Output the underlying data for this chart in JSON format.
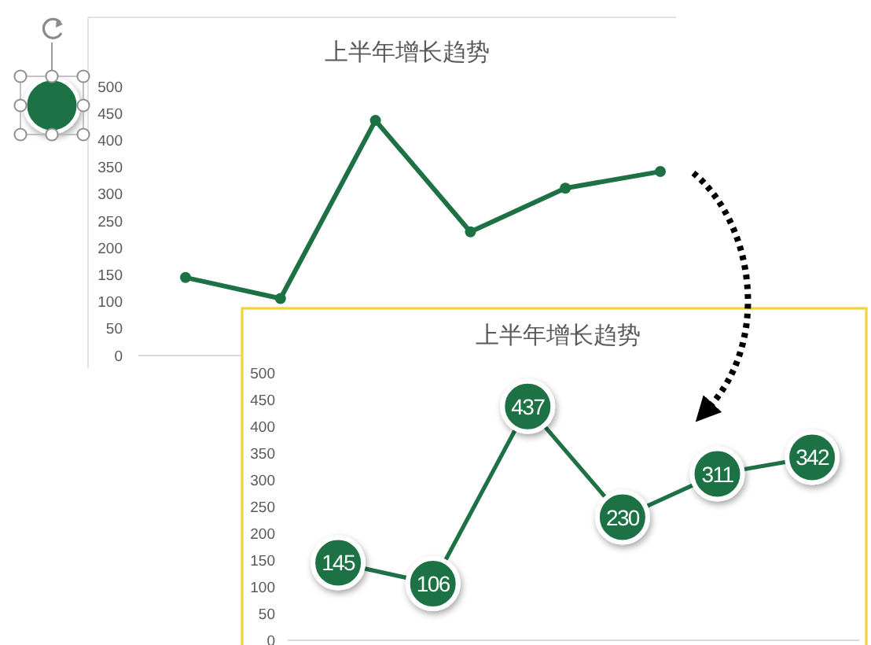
{
  "chart_data": [
    {
      "type": "line",
      "title": "上半年增长趋势",
      "categories": [
        null,
        null,
        null,
        null,
        null,
        null
      ],
      "series": [
        {
          "color": "#1e7145",
          "values": [
            145,
            106,
            437,
            230,
            311,
            342
          ]
        }
      ],
      "ylim": [
        0,
        500
      ],
      "yticks": [
        0,
        50,
        100,
        150,
        200,
        250,
        300,
        350,
        400,
        450,
        500
      ],
      "marker": "circle"
    },
    {
      "type": "line",
      "title": "上半年增长趋势",
      "categories": [
        null,
        null,
        null,
        null,
        null,
        null
      ],
      "series": [
        {
          "color": "#1e7145",
          "values": [
            145,
            106,
            437,
            230,
            311,
            342
          ]
        }
      ],
      "ylim": [
        0,
        500
      ],
      "yticks": [
        0,
        50,
        100,
        150,
        200,
        250,
        300,
        350,
        400,
        450,
        500
      ],
      "marker": "circle",
      "data_labels": true
    }
  ]
}
